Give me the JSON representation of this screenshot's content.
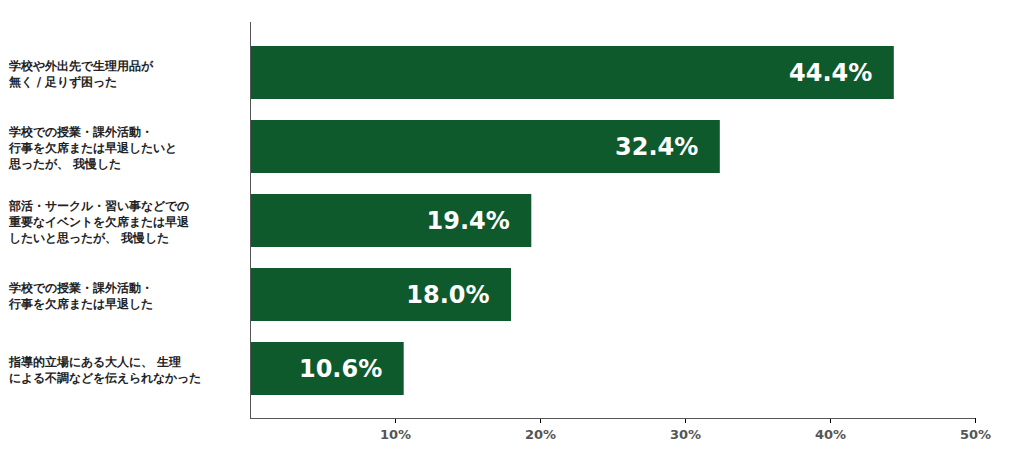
{
  "chart_data": {
    "type": "bar",
    "orientation": "horizontal",
    "categories": [
      "学校や外出先で生理用品が\n無く / 足りず困った",
      "学校での授業・課外活動・\n行事を欠席または早退したいと\n思ったが、 我慢した",
      "部活・サークル・習い事などでの\n重要なイベントを欠席または早退\nしたいと思ったが、 我慢した",
      "学校での授業・課外活動・\n行事を欠席または早退した",
      "指導的立場にある大人に、 生理\nによる不調などを伝えられなかった"
    ],
    "values": [
      44.4,
      32.4,
      19.4,
      18.0,
      10.6
    ],
    "value_labels": [
      "44.4%",
      "32.4%",
      "19.4%",
      "18.0%",
      "10.6%"
    ],
    "color": "#0f5a2d",
    "xlim": [
      0,
      50
    ],
    "xticks": [
      {
        "value": 10,
        "label": "10%"
      },
      {
        "value": 20,
        "label": "20%"
      },
      {
        "value": 30,
        "label": "30%"
      },
      {
        "value": 40,
        "label": "40%"
      },
      {
        "value": 50,
        "label": "50%"
      }
    ],
    "data_labels": true,
    "grid": false
  }
}
